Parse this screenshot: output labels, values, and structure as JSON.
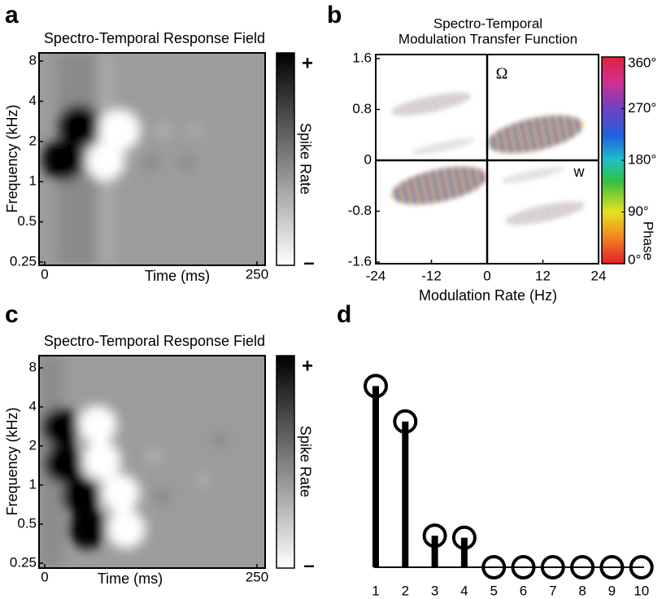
{
  "chart_data": [
    {
      "type": "image",
      "panel_label": "a",
      "title": "Spectro-Temporal Response Field",
      "xlabel": "Time (ms)",
      "ylabel": "Frequency (kHz)",
      "xlim": [
        0,
        250
      ],
      "xticks": [
        0,
        250
      ],
      "ylim": [
        0.25,
        8
      ],
      "yticks": [
        8,
        4,
        2,
        1,
        0.5,
        0.25
      ],
      "yscale": "log",
      "colorbar": {
        "label": "Spike Rate",
        "ticks": [
          "+",
          "–"
        ]
      }
    },
    {
      "type": "heatmap",
      "panel_label": "b",
      "title": [
        "Spectro-Temporal",
        "Modulation Transfer Function"
      ],
      "xlabel": "Modulation Rate (Hz)",
      "xlim": [
        -24,
        24
      ],
      "xticks": [
        -24,
        -12,
        0,
        12,
        24
      ],
      "ylim": [
        -1.6,
        1.6
      ],
      "yticks": [
        1.6,
        0.8,
        0,
        -0.8,
        -1.6
      ],
      "axis_names": [
        "Ω",
        "w"
      ],
      "colorbar": {
        "label": "Phase",
        "lim": [
          0,
          360
        ],
        "ticks": [
          {
            "value": 360,
            "label": "360°"
          },
          {
            "value": 270,
            "label": "270°"
          },
          {
            "value": 180,
            "label": "180°"
          },
          {
            "value": 90,
            "label": "90°"
          },
          {
            "value": 0,
            "label": "0°"
          }
        ]
      }
    },
    {
      "type": "image",
      "panel_label": "c",
      "title": "Spectro-Temporal Response Field",
      "xlabel": "Time (ms)",
      "ylabel": "Frequency (kHz)",
      "xlim": [
        0,
        250
      ],
      "xticks": [
        0,
        250
      ],
      "ylim": [
        0.25,
        8
      ],
      "yticks": [
        8,
        4,
        2,
        1,
        0.5,
        0.25
      ],
      "yscale": "log",
      "colorbar": {
        "label": "Spike Rate",
        "ticks": [
          "+",
          "–"
        ]
      }
    },
    {
      "type": "stem",
      "panel_label": "d",
      "categories": [
        "1",
        "2",
        "3",
        "4",
        "5",
        "6",
        "7",
        "8",
        "9",
        "10"
      ],
      "values": [
        0.92,
        0.74,
        0.16,
        0.15,
        0,
        0,
        0,
        0,
        0,
        0
      ],
      "ylim": [
        0,
        1
      ],
      "color": "#000000"
    }
  ]
}
